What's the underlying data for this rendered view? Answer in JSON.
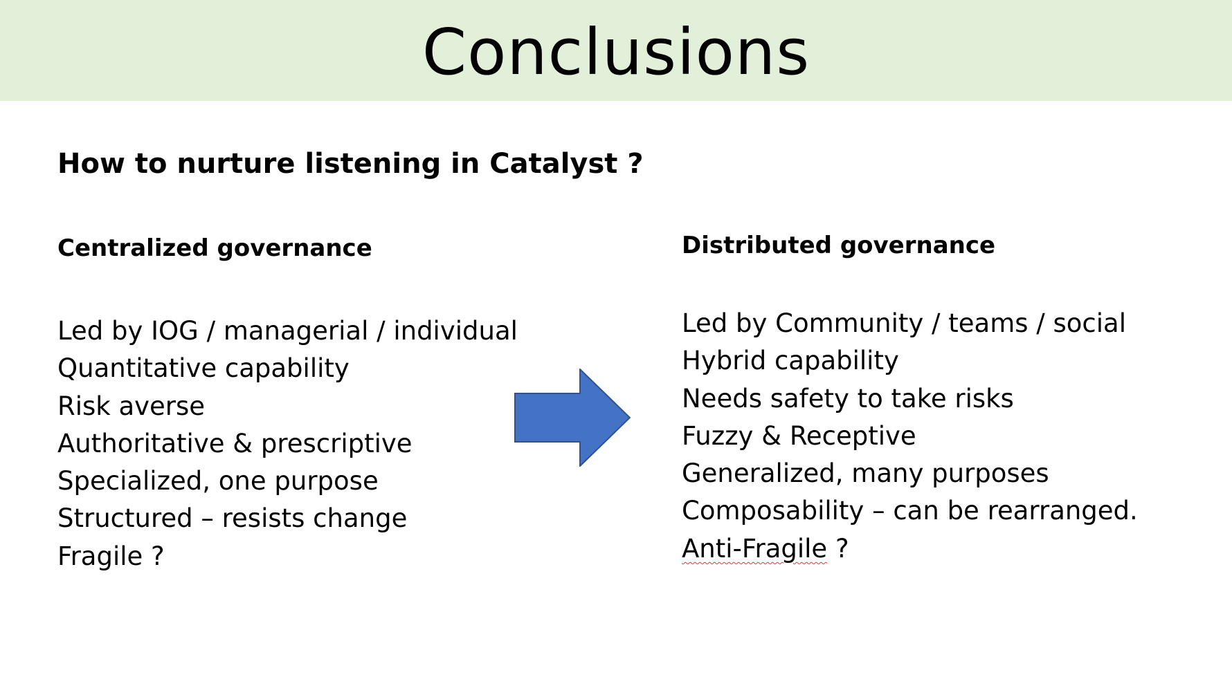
{
  "slide": {
    "title": "Conclusions",
    "question": "How to nurture listening in Catalyst ?",
    "colors": {
      "title_band": "#e2efd9",
      "arrow_fill": "#4472c4",
      "arrow_stroke": "#2f528f"
    },
    "left": {
      "heading": "Centralized governance",
      "items": [
        "Led by IOG / managerial / individual",
        "Quantitative capability",
        "Risk averse",
        "Authoritative & prescriptive",
        "Specialized, one purpose",
        "Structured – resists change",
        "Fragile ?"
      ]
    },
    "arrow_icon": "right-arrow-icon",
    "right": {
      "heading": "Distributed governance",
      "items": [
        "Led by Community / teams / social",
        "Hybrid capability",
        "Needs safety to take risks",
        "Fuzzy & Receptive",
        "Generalized, many purposes",
        "Composability – can be rearranged."
      ],
      "last_item_word": "Anti-Fragile",
      "last_item_suffix": " ?"
    }
  }
}
